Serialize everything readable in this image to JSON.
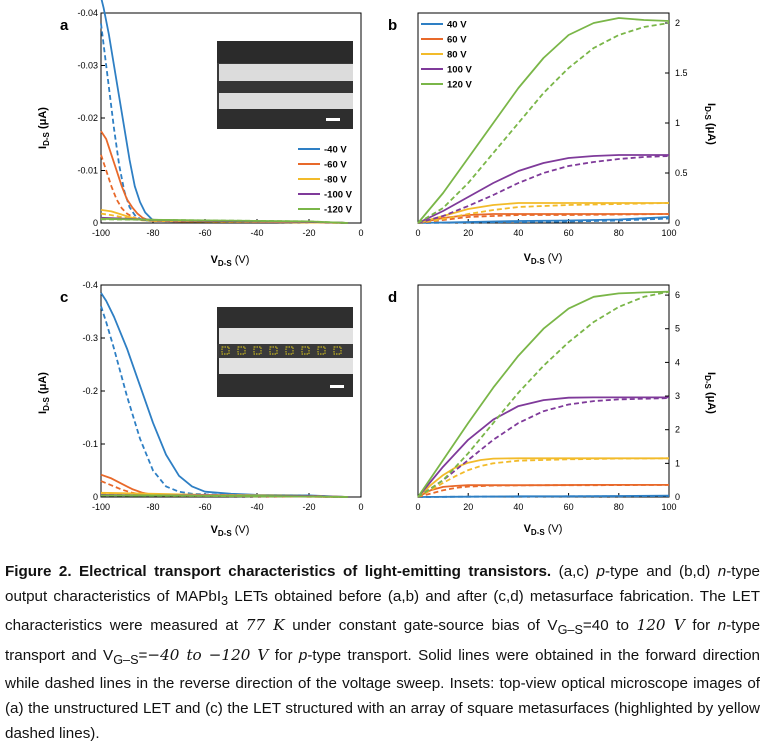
{
  "panels": {
    "a": {
      "letter": "a",
      "xlabel_main": "V",
      "xlabel_sub": "D-S",
      "xlabel_unit": " (V)",
      "ylabel_main": "I",
      "ylabel_sub": "D-S",
      "ylabel_unit": " (μA)",
      "xticks": [
        "-100",
        "-80",
        "-60",
        "-40",
        "-20",
        "0"
      ],
      "yticks": [
        "-0.04",
        "-0.03",
        "-0.02",
        "-0.01",
        "0"
      ],
      "legend": [
        "-40 V",
        "-60 V",
        "-80 V",
        "-100 V",
        "-120 V"
      ]
    },
    "b": {
      "letter": "b",
      "xlabel_main": "V",
      "xlabel_sub": "D-S",
      "xlabel_unit": " (V)",
      "ylabel_main": "I",
      "ylabel_sub": "D-S",
      "ylabel_unit": " (μA)",
      "xticks": [
        "0",
        "20",
        "40",
        "60",
        "80",
        "100"
      ],
      "yticks": [
        "0",
        "0.5",
        "1",
        "1.5",
        "2"
      ],
      "legend": [
        "40 V",
        "60 V",
        "80 V",
        "100 V",
        "120 V"
      ]
    },
    "c": {
      "letter": "c",
      "xlabel_main": "V",
      "xlabel_sub": "D-S",
      "xlabel_unit": " (V)",
      "ylabel_main": "I",
      "ylabel_sub": "D-S",
      "ylabel_unit": " (μA)",
      "xticks": [
        "-100",
        "-80",
        "-60",
        "-40",
        "-20",
        "0"
      ],
      "yticks": [
        "-0.4",
        "-0.3",
        "-0.2",
        "-0.1",
        "0"
      ]
    },
    "d": {
      "letter": "d",
      "xlabel_main": "V",
      "xlabel_sub": "D-S",
      "xlabel_unit": " (V)",
      "ylabel_main": "I",
      "ylabel_sub": "D-S",
      "ylabel_unit": " (μA)",
      "xticks": [
        "0",
        "20",
        "40",
        "60",
        "80",
        "100"
      ],
      "yticks": [
        "0",
        "1",
        "2",
        "3",
        "4",
        "5",
        "6"
      ]
    }
  },
  "colors": {
    "c40": "#2e7fc4",
    "c60": "#e8692a",
    "c80": "#f2bb2a",
    "c100": "#7f3a9a",
    "c120": "#7ab648"
  },
  "chart_data": [
    {
      "panel": "a",
      "type": "line",
      "xlim": [
        -100,
        0
      ],
      "ylim": [
        -0.04,
        0
      ],
      "xlabel": "VD-S (V)",
      "ylabel": "ID-S (μA)",
      "series": [
        {
          "name": "-40 V",
          "x": [
            -100,
            -99,
            -97,
            -95,
            -93,
            -91,
            -89,
            -87,
            -85,
            -83,
            -81,
            -80,
            -70,
            -50,
            -30,
            -10,
            -5
          ],
          "forward": [
            -0.043,
            -0.041,
            -0.036,
            -0.03,
            -0.024,
            -0.018,
            -0.012,
            -0.007,
            -0.004,
            -0.002,
            -0.001,
            -0.0005,
            -0.0004,
            -0.0003,
            -0.0002,
            -0.0001,
            0
          ],
          "reverse": [
            -0.038,
            -0.034,
            -0.026,
            -0.018,
            -0.011,
            -0.006,
            -0.003,
            -0.0015,
            -0.0008,
            -0.0005,
            -0.0004,
            -0.0004,
            -0.0003,
            -0.0002,
            -0.0002,
            -0.0001,
            0
          ]
        },
        {
          "name": "-60 V",
          "x": [
            -100,
            -98,
            -96,
            -94,
            -92,
            -90,
            -88,
            -86,
            -84,
            -82,
            -80,
            -70,
            -50,
            -30,
            -10,
            -5
          ],
          "forward": [
            -0.0175,
            -0.016,
            -0.013,
            -0.01,
            -0.007,
            -0.0045,
            -0.003,
            -0.0018,
            -0.001,
            -0.0006,
            -0.0004,
            -0.0003,
            -0.0003,
            -0.0002,
            -0.0001,
            0
          ],
          "reverse": [
            -0.013,
            -0.01,
            -0.007,
            -0.0045,
            -0.0028,
            -0.0018,
            -0.0012,
            -0.0008,
            -0.0006,
            -0.0005,
            -0.0004,
            -0.0003,
            -0.0002,
            -0.0002,
            -0.0001,
            0
          ]
        },
        {
          "name": "-80 V",
          "x": [
            -100,
            -96,
            -92,
            -88,
            -84,
            -80,
            -60,
            -40,
            -20,
            -5
          ],
          "forward": [
            -0.0025,
            -0.0022,
            -0.0016,
            -0.001,
            -0.0006,
            -0.0004,
            -0.0003,
            -0.0002,
            -0.0001,
            0
          ],
          "reverse": [
            -0.0018,
            -0.0015,
            -0.0011,
            -0.0008,
            -0.0005,
            -0.0004,
            -0.0003,
            -0.0002,
            -0.0001,
            0
          ]
        },
        {
          "name": "-100 V",
          "x": [
            -100,
            -90,
            -80,
            -60,
            -40,
            -20,
            -5
          ],
          "forward": [
            -0.001,
            -0.0008,
            -0.0006,
            -0.0004,
            -0.0003,
            -0.0002,
            0
          ],
          "reverse": [
            -0.0009,
            -0.0007,
            -0.0005,
            -0.0004,
            -0.0003,
            -0.0002,
            0
          ]
        },
        {
          "name": "-120 V",
          "x": [
            -100,
            -80,
            -60,
            -40,
            -20,
            -5
          ],
          "forward": [
            -0.0008,
            -0.0006,
            -0.0005,
            -0.0004,
            -0.0003,
            0
          ],
          "reverse": [
            -0.0007,
            -0.0006,
            -0.0005,
            -0.0004,
            -0.0003,
            0
          ]
        }
      ]
    },
    {
      "panel": "b",
      "type": "line",
      "xlim": [
        0,
        100
      ],
      "ylim": [
        0,
        2.1
      ],
      "xlabel": "VD-S (V)",
      "ylabel": "ID-S (μA)",
      "series": [
        {
          "name": "40 V",
          "x": [
            0,
            20,
            40,
            60,
            80,
            100
          ],
          "forward": [
            0,
            0.01,
            0.02,
            0.025,
            0.035,
            0.06
          ],
          "reverse": [
            0,
            0.005,
            0.01,
            0.015,
            0.025,
            0.045
          ]
        },
        {
          "name": "60 V",
          "x": [
            0,
            10,
            20,
            30,
            40,
            60,
            80,
            100
          ],
          "forward": [
            0,
            0.05,
            0.08,
            0.09,
            0.09,
            0.09,
            0.09,
            0.09
          ],
          "reverse": [
            0,
            0.03,
            0.06,
            0.07,
            0.08,
            0.08,
            0.085,
            0.09
          ]
        },
        {
          "name": "80 V",
          "x": [
            0,
            10,
            20,
            30,
            40,
            50,
            60,
            80,
            100
          ],
          "forward": [
            0,
            0.07,
            0.14,
            0.18,
            0.2,
            0.2,
            0.2,
            0.2,
            0.2
          ],
          "reverse": [
            0,
            0.04,
            0.09,
            0.13,
            0.16,
            0.17,
            0.18,
            0.19,
            0.2
          ]
        },
        {
          "name": "100 V",
          "x": [
            0,
            10,
            20,
            30,
            40,
            50,
            60,
            70,
            80,
            90,
            100
          ],
          "forward": [
            0,
            0.12,
            0.26,
            0.4,
            0.52,
            0.6,
            0.65,
            0.67,
            0.68,
            0.68,
            0.68
          ],
          "reverse": [
            0,
            0.07,
            0.17,
            0.28,
            0.4,
            0.5,
            0.57,
            0.61,
            0.64,
            0.66,
            0.67
          ]
        },
        {
          "name": "120 V",
          "x": [
            0,
            10,
            20,
            30,
            40,
            50,
            60,
            70,
            80,
            90,
            100
          ],
          "forward": [
            0,
            0.3,
            0.65,
            1.0,
            1.35,
            1.65,
            1.88,
            2.0,
            2.05,
            2.03,
            2.02
          ],
          "reverse": [
            0,
            0.15,
            0.4,
            0.7,
            1.0,
            1.3,
            1.55,
            1.75,
            1.88,
            1.96,
            2.0
          ]
        }
      ]
    },
    {
      "panel": "c",
      "type": "line",
      "xlim": [
        -100,
        0
      ],
      "ylim": [
        -0.4,
        0
      ],
      "xlabel": "VD-S (V)",
      "ylabel": "ID-S (μA)",
      "series": [
        {
          "name": "-40 V",
          "x": [
            -100,
            -98,
            -95,
            -90,
            -85,
            -80,
            -75,
            -70,
            -65,
            -60,
            -50,
            -40,
            -20,
            -5
          ],
          "forward": [
            -0.385,
            -0.37,
            -0.34,
            -0.28,
            -0.21,
            -0.14,
            -0.08,
            -0.04,
            -0.02,
            -0.01,
            -0.006,
            -0.004,
            -0.003,
            0
          ],
          "reverse": [
            -0.36,
            -0.33,
            -0.28,
            -0.19,
            -0.11,
            -0.05,
            -0.02,
            -0.01,
            -0.006,
            -0.005,
            -0.004,
            -0.003,
            -0.002,
            0
          ]
        },
        {
          "name": "-60 V",
          "x": [
            -100,
            -96,
            -92,
            -88,
            -84,
            -80,
            -70,
            -50,
            -30,
            -5
          ],
          "forward": [
            -0.042,
            -0.035,
            -0.025,
            -0.015,
            -0.008,
            -0.004,
            -0.003,
            -0.002,
            -0.001,
            0
          ],
          "reverse": [
            -0.03,
            -0.022,
            -0.014,
            -0.008,
            -0.005,
            -0.003,
            -0.002,
            -0.002,
            -0.001,
            0
          ]
        },
        {
          "name": "-80 V",
          "x": [
            -100,
            -80,
            -60,
            -40,
            -20,
            -5
          ],
          "forward": [
            -0.008,
            -0.006,
            -0.004,
            -0.003,
            -0.002,
            0
          ],
          "reverse": [
            -0.006,
            -0.005,
            -0.004,
            -0.003,
            -0.002,
            0
          ]
        },
        {
          "name": "-100 V",
          "x": [
            -100,
            -80,
            -60,
            -40,
            -20,
            -5
          ],
          "forward": [
            -0.004,
            -0.003,
            -0.003,
            -0.002,
            -0.002,
            0
          ],
          "reverse": [
            -0.003,
            -0.003,
            -0.002,
            -0.002,
            -0.001,
            0
          ]
        },
        {
          "name": "-120 V",
          "x": [
            -100,
            -80,
            -60,
            -40,
            -20,
            -5
          ],
          "forward": [
            -0.003,
            -0.003,
            -0.002,
            -0.002,
            -0.001,
            0
          ],
          "reverse": [
            -0.003,
            -0.002,
            -0.002,
            -0.001,
            -0.001,
            0
          ]
        }
      ]
    },
    {
      "panel": "d",
      "type": "line",
      "xlim": [
        0,
        100
      ],
      "ylim": [
        0,
        6.3
      ],
      "xlabel": "VD-S (V)",
      "ylabel": "ID-S (μA)",
      "series": [
        {
          "name": "40 V",
          "x": [
            0,
            20,
            40,
            60,
            80,
            100
          ],
          "forward": [
            0,
            0.01,
            0.02,
            0.02,
            0.03,
            0.04
          ],
          "reverse": [
            0,
            0.01,
            0.01,
            0.02,
            0.02,
            0.03
          ]
        },
        {
          "name": "60 V",
          "x": [
            0,
            5,
            10,
            15,
            20,
            30,
            50,
            70,
            100
          ],
          "forward": [
            0,
            0.2,
            0.3,
            0.33,
            0.35,
            0.35,
            0.35,
            0.36,
            0.36
          ],
          "reverse": [
            0,
            0.1,
            0.2,
            0.27,
            0.31,
            0.34,
            0.35,
            0.35,
            0.36
          ]
        },
        {
          "name": "80 V",
          "x": [
            0,
            5,
            10,
            15,
            20,
            25,
            30,
            40,
            60,
            80,
            100
          ],
          "forward": [
            0,
            0.35,
            0.65,
            0.88,
            1.02,
            1.1,
            1.14,
            1.15,
            1.15,
            1.15,
            1.15
          ],
          "reverse": [
            0,
            0.2,
            0.42,
            0.62,
            0.8,
            0.92,
            1.0,
            1.08,
            1.12,
            1.14,
            1.15
          ]
        },
        {
          "name": "100 V",
          "x": [
            0,
            10,
            20,
            30,
            40,
            50,
            60,
            70,
            80,
            100
          ],
          "forward": [
            0,
            0.9,
            1.7,
            2.3,
            2.7,
            2.88,
            2.95,
            2.96,
            2.96,
            2.96
          ],
          "reverse": [
            0,
            0.5,
            1.1,
            1.7,
            2.2,
            2.55,
            2.75,
            2.85,
            2.9,
            2.94
          ]
        },
        {
          "name": "120 V",
          "x": [
            0,
            10,
            20,
            30,
            40,
            50,
            60,
            70,
            80,
            90,
            100
          ],
          "forward": [
            0,
            1.1,
            2.2,
            3.25,
            4.2,
            5.0,
            5.6,
            5.95,
            6.05,
            6.08,
            6.1
          ],
          "reverse": [
            0,
            0.5,
            1.3,
            2.2,
            3.1,
            3.9,
            4.6,
            5.2,
            5.65,
            5.95,
            6.1
          ]
        }
      ]
    }
  ],
  "caption": {
    "fig_label": "Figure 2. Electrical transport characteristics of light-emitting transistors.",
    "s1": " (a,c) ",
    "p1": "p",
    "s2": "-type and (b,d) ",
    "n1": "n",
    "s3": "-type output characteristics of MAPbI",
    "sub3": "3",
    "s4": " LETs obtained before (a,b) and after (c,d) metasurface fabrication. The LET characteristics were measured at ",
    "math_temp": "77 K",
    "s5": " under constant gate-source bias of V",
    "sub_gs1": "G–S",
    "s6": "=40 to ",
    "math_v1": "120 V",
    "s7": " for ",
    "n2": "n",
    "s8": "-type transport and V",
    "sub_gs2": "G–S",
    "s9": "=",
    "math_v2": "−40 to −120 V",
    "s10": " for ",
    "p2": "p",
    "s11": "-type transport. Solid lines were obtained in the forward direction while dashed lines in the reverse direction of the voltage sweep. Insets: top-view optical microscope images of (a) the unstructured LET and (c) the LET structured with an array of square metasurfaces (highlighted by yellow dashed lines)."
  }
}
